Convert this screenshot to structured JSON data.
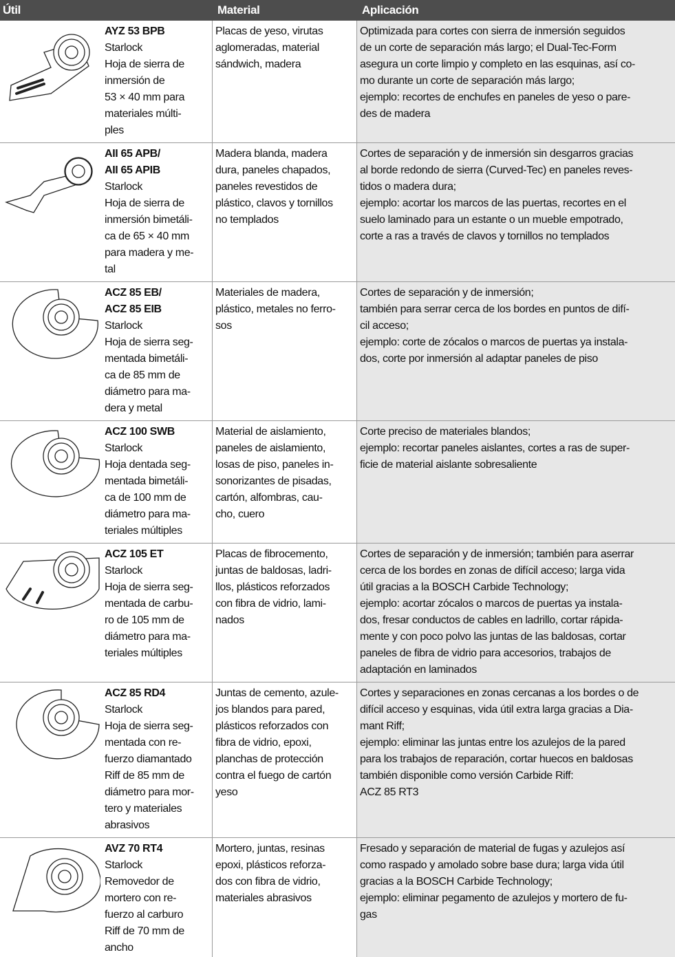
{
  "header": {
    "tool": "Útil",
    "material": "Material",
    "application": "Aplicación"
  },
  "rows": [
    {
      "name": [
        "AYZ 53 BPB"
      ],
      "description": [
        "Starlock",
        "Hoja de sierra de",
        "inmersión de",
        "53 × 40 mm para",
        "materiales múlti-",
        "ples"
      ],
      "material": [
        "Placas de yeso, virutas",
        "aglomeradas, material",
        "sándwich, madera"
      ],
      "application": [
        "Optimizada para cortes con sierra de inmersión seguidos",
        "de un corte de separación más largo; el Dual-Tec-Form",
        "asegura un corte limpio y completo en las esquinas, así co-",
        "mo durante un corte de separación más largo;",
        "ejemplo: recortes de enchufes en paneles de yeso o pare-",
        "des de madera"
      ]
    },
    {
      "name": [
        "AII 65 APB/",
        "AII 65 APIB"
      ],
      "description": [
        "Starlock",
        "Hoja de sierra de",
        "inmersión bimetáli-",
        "ca de 65 × 40 mm",
        "para madera y me-",
        "tal"
      ],
      "material": [
        "Madera blanda, madera",
        "dura, paneles chapados,",
        "paneles revestidos de",
        "plástico, clavos y tornillos",
        "no templados"
      ],
      "application": [
        "Cortes de separación y de inmersión sin desgarros gracias",
        "al borde redondo de sierra (Curved-Tec) en paneles reves-",
        "tidos o madera dura;",
        "ejemplo: acortar los marcos de las puertas, recortes en el",
        "suelo laminado para un estante o un mueble empotrado,",
        "corte a ras a través de clavos y tornillos no templados"
      ]
    },
    {
      "name": [
        "ACZ 85 EB/",
        "ACZ 85 EIB"
      ],
      "description": [
        "Starlock",
        "Hoja de sierra seg-",
        "mentada bimetáli-",
        "ca de 85 mm de",
        "diámetro para ma-",
        "dera y metal"
      ],
      "material": [
        "Materiales de madera,",
        "plástico, metales no ferro-",
        "sos"
      ],
      "application": [
        "Cortes de separación y de inmersión;",
        "también para serrar cerca de los bordes en puntos de difí-",
        "cil acceso;",
        "ejemplo: corte de zócalos o marcos de puertas ya instala-",
        "dos, corte por inmersión al adaptar paneles de piso"
      ]
    },
    {
      "name": [
        "ACZ 100 SWB"
      ],
      "description": [
        "Starlock",
        "Hoja dentada seg-",
        "mentada bimetáli-",
        "ca de 100 mm de",
        "diámetro para ma-",
        "teriales múltiples"
      ],
      "material": [
        "Material de aislamiento,",
        "paneles de aislamiento,",
        "losas de piso, paneles in-",
        "sonorizantes de pisadas,",
        "cartón, alfombras, cau-",
        "cho, cuero"
      ],
      "application": [
        "Corte preciso de materiales blandos;",
        "ejemplo: recortar paneles aislantes, cortes a ras de super-",
        "ficie de material aislante sobresaliente"
      ]
    },
    {
      "name": [
        "ACZ 105 ET"
      ],
      "description": [
        "Starlock",
        "Hoja de sierra seg-",
        "mentada de carbu-",
        "ro de 105 mm de",
        "diámetro para ma-",
        "teriales múltiples"
      ],
      "material": [
        "Placas de fibrocemento,",
        "juntas de baldosas, ladri-",
        "llos, plásticos reforzados",
        "con fibra de vidrio, lami-",
        "nados"
      ],
      "application": [
        "Cortes de separación y de inmersión; también para aserrar",
        "cerca de los bordes en zonas de difícil acceso; larga vida",
        "útil gracias a la BOSCH Carbide Technology;",
        "ejemplo: acortar zócalos o marcos de puertas ya instala-",
        "dos, fresar conductos de cables en ladrillo, cortar rápida-",
        "mente y con poco polvo las juntas de las baldosas, cortar",
        "paneles de fibra de vidrio para accesorios, trabajos de",
        "adaptación en laminados"
      ]
    },
    {
      "name": [
        "ACZ 85 RD4"
      ],
      "description": [
        "Starlock",
        "Hoja de sierra seg-",
        "mentada con re-",
        "fuerzo diamantado",
        "Riff de 85 mm de",
        "diámetro para mor-",
        "tero y materiales",
        "abrasivos"
      ],
      "material": [
        "Juntas de cemento, azule-",
        "jos blandos para pared,",
        "plásticos reforzados con",
        "fibra de vidrio, epoxi,",
        "planchas de protección",
        "contra el fuego de cartón",
        "yeso"
      ],
      "application": [
        "Cortes y separaciones en zonas cercanas a los bordes o de",
        "difícil acceso y esquinas, vida útil extra larga gracias a Dia-",
        "mant Riff;",
        "ejemplo: eliminar las juntas entre los azulejos de la pared",
        "para los trabajos de reparación, cortar huecos en baldosas",
        "también disponible como versión Carbide Riff:",
        "ACZ 85 RT3"
      ]
    },
    {
      "name": [
        "AVZ 70 RT4"
      ],
      "description": [
        "Starlock",
        "Removedor de",
        "mortero con re-",
        "fuerzo al carburo",
        "Riff de 70 mm de",
        "ancho"
      ],
      "material": [
        "Mortero, juntas, resinas",
        "epoxi, plásticos reforza-",
        "dos con fibra de vidrio,",
        "materiales abrasivos"
      ],
      "application": [
        "Fresado y separación de material de fugas y azulejos así",
        "como raspado y amolado sobre base dura; larga vida útil",
        "gracias a la BOSCH Carbide Technology;",
        "ejemplo: eliminar pegamento de azulejos y mortero de fu-",
        "gas"
      ]
    }
  ]
}
